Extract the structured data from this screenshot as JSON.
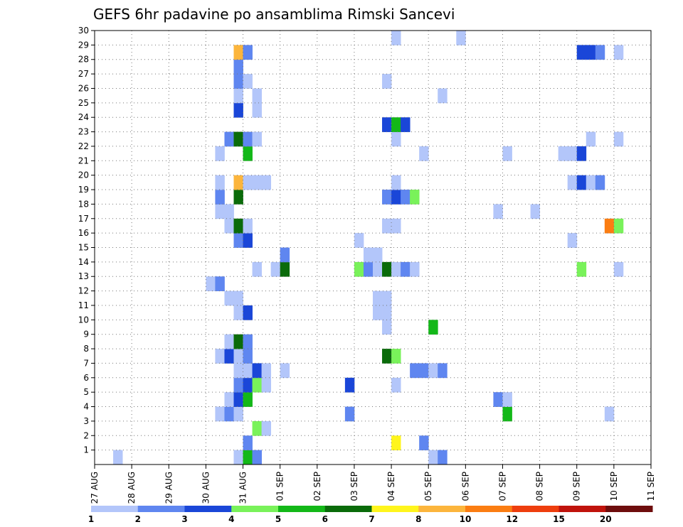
{
  "chart_data": {
    "type": "heatmap",
    "title": "GEFS 6hr padavine po ansamblima Rimski Sancevi",
    "xlabel": "",
    "ylabel": "",
    "x_ticks": [
      "27 AUG",
      "28 AUG",
      "29 AUG",
      "30 AUG",
      "31 AUG",
      "01 SEP",
      "02 SEP",
      "03 SEP",
      "04 SEP",
      "05 SEP",
      "06 SEP",
      "07 SEP",
      "08 SEP",
      "09 SEP",
      "10 SEP",
      "11 SEP"
    ],
    "xlim_days": [
      0,
      15
    ],
    "x_step_hours": 6,
    "y_ticks": [
      1,
      2,
      3,
      4,
      5,
      6,
      7,
      8,
      9,
      10,
      11,
      12,
      13,
      14,
      15,
      16,
      17,
      18,
      19,
      20,
      21,
      22,
      23,
      24,
      25,
      26,
      27,
      28,
      29,
      30
    ],
    "ylim": [
      0,
      30
    ],
    "grid": true,
    "colorbar": {
      "levels": [
        "1",
        "2",
        "3",
        "4",
        "5",
        "6",
        "7",
        "8",
        "10",
        "12",
        "15",
        "20"
      ],
      "colors": [
        "#b3c6fa",
        "#5f86f0",
        "#1a46d8",
        "#79f25a",
        "#13b818",
        "#0a6b0a",
        "#fff51c",
        "#fcb53c",
        "#fb7d12",
        "#ee3e0e",
        "#c0130c",
        "#6e0d0d"
      ]
    },
    "cells": [
      {
        "day": 0.5,
        "member": 0,
        "value": 1.5
      },
      {
        "day": 3.75,
        "member": 0,
        "value": 1.5
      },
      {
        "day": 4.0,
        "member": 0,
        "value": 5
      },
      {
        "day": 4.25,
        "member": 0,
        "value": 2.5
      },
      {
        "day": 9.0,
        "member": 0,
        "value": 1.5
      },
      {
        "day": 9.25,
        "member": 0,
        "value": 2.5
      },
      {
        "day": 4.0,
        "member": 1,
        "value": 2.5
      },
      {
        "day": 8.0,
        "member": 1,
        "value": 7.5
      },
      {
        "day": 8.75,
        "member": 1,
        "value": 2.5
      },
      {
        "day": 4.25,
        "member": 2,
        "value": 4.5
      },
      {
        "day": 4.5,
        "member": 2,
        "value": 1.5
      },
      {
        "day": 3.25,
        "member": 3,
        "value": 1.5
      },
      {
        "day": 3.5,
        "member": 3,
        "value": 2.5
      },
      {
        "day": 3.75,
        "member": 3,
        "value": 1.5
      },
      {
        "day": 6.75,
        "member": 3,
        "value": 2.5
      },
      {
        "day": 11.0,
        "member": 3,
        "value": 5.5
      },
      {
        "day": 13.75,
        "member": 3,
        "value": 1.5
      },
      {
        "day": 3.5,
        "member": 4,
        "value": 1.5
      },
      {
        "day": 3.75,
        "member": 4,
        "value": 3.5
      },
      {
        "day": 4.0,
        "member": 4,
        "value": 5.5
      },
      {
        "day": 10.75,
        "member": 4,
        "value": 2.5
      },
      {
        "day": 11.0,
        "member": 4,
        "value": 1.5
      },
      {
        "day": 3.75,
        "member": 5,
        "value": 2.5
      },
      {
        "day": 4.0,
        "member": 5,
        "value": 3.5
      },
      {
        "day": 4.25,
        "member": 5,
        "value": 4.5
      },
      {
        "day": 4.5,
        "member": 5,
        "value": 1.5
      },
      {
        "day": 6.75,
        "member": 5,
        "value": 3.5
      },
      {
        "day": 8.0,
        "member": 5,
        "value": 1.5
      },
      {
        "day": 3.75,
        "member": 6,
        "value": 1.5
      },
      {
        "day": 4.0,
        "member": 6,
        "value": 1.5
      },
      {
        "day": 4.25,
        "member": 6,
        "value": 3.5
      },
      {
        "day": 4.5,
        "member": 6,
        "value": 1.5
      },
      {
        "day": 5.0,
        "member": 6,
        "value": 1.5
      },
      {
        "day": 8.5,
        "member": 6,
        "value": 2.5
      },
      {
        "day": 8.75,
        "member": 6,
        "value": 2.5
      },
      {
        "day": 9.0,
        "member": 6,
        "value": 1.5
      },
      {
        "day": 9.25,
        "member": 6,
        "value": 2.5
      },
      {
        "day": 3.25,
        "member": 7,
        "value": 1.5
      },
      {
        "day": 3.5,
        "member": 7,
        "value": 3.5
      },
      {
        "day": 3.75,
        "member": 7,
        "value": 1.5
      },
      {
        "day": 4.0,
        "member": 7,
        "value": 2.5
      },
      {
        "day": 7.75,
        "member": 7,
        "value": 6.5
      },
      {
        "day": 8.0,
        "member": 7,
        "value": 4.5
      },
      {
        "day": 3.5,
        "member": 8,
        "value": 1.5
      },
      {
        "day": 3.75,
        "member": 8,
        "value": 6.5
      },
      {
        "day": 4.0,
        "member": 8,
        "value": 2.5
      },
      {
        "day": 7.75,
        "member": 9,
        "value": 1.5
      },
      {
        "day": 9.0,
        "member": 9,
        "value": 5.5
      },
      {
        "day": 3.75,
        "member": 10,
        "value": 1.5
      },
      {
        "day": 4.0,
        "member": 10,
        "value": 3.5
      },
      {
        "day": 7.5,
        "member": 10,
        "value": 1.5
      },
      {
        "day": 7.75,
        "member": 10,
        "value": 1.5
      },
      {
        "day": 3.5,
        "member": 11,
        "value": 1.5
      },
      {
        "day": 3.75,
        "member": 11,
        "value": 1.5
      },
      {
        "day": 7.5,
        "member": 11,
        "value": 1.5
      },
      {
        "day": 7.75,
        "member": 11,
        "value": 1.5
      },
      {
        "day": 3.0,
        "member": 12,
        "value": 1.5
      },
      {
        "day": 3.25,
        "member": 12,
        "value": 2.5
      },
      {
        "day": 4.25,
        "member": 13,
        "value": 1.5
      },
      {
        "day": 4.75,
        "member": 13,
        "value": 1.5
      },
      {
        "day": 5.0,
        "member": 13,
        "value": 6.5
      },
      {
        "day": 7.0,
        "member": 13,
        "value": 4.5
      },
      {
        "day": 7.25,
        "member": 13,
        "value": 2.5
      },
      {
        "day": 7.5,
        "member": 13,
        "value": 1.5
      },
      {
        "day": 7.75,
        "member": 13,
        "value": 6.5
      },
      {
        "day": 8.0,
        "member": 13,
        "value": 1.5
      },
      {
        "day": 8.25,
        "member": 13,
        "value": 2.5
      },
      {
        "day": 8.5,
        "member": 13,
        "value": 1.5
      },
      {
        "day": 13.0,
        "member": 13,
        "value": 4.5
      },
      {
        "day": 14.0,
        "member": 13,
        "value": 1.5
      },
      {
        "day": 5.0,
        "member": 14,
        "value": 2.5
      },
      {
        "day": 7.25,
        "member": 14,
        "value": 1.5
      },
      {
        "day": 7.5,
        "member": 14,
        "value": 1.5
      },
      {
        "day": 3.75,
        "member": 15,
        "value": 2.5
      },
      {
        "day": 4.0,
        "member": 15,
        "value": 3.5
      },
      {
        "day": 7.0,
        "member": 15,
        "value": 1.5
      },
      {
        "day": 12.75,
        "member": 15,
        "value": 1.5
      },
      {
        "day": 3.5,
        "member": 16,
        "value": 1.5
      },
      {
        "day": 3.75,
        "member": 16,
        "value": 6.5
      },
      {
        "day": 4.0,
        "member": 16,
        "value": 1.5
      },
      {
        "day": 7.75,
        "member": 16,
        "value": 1.5
      },
      {
        "day": 8.0,
        "member": 16,
        "value": 1.5
      },
      {
        "day": 13.75,
        "member": 16,
        "value": 11
      },
      {
        "day": 14.0,
        "member": 16,
        "value": 4.5
      },
      {
        "day": 3.25,
        "member": 17,
        "value": 1.5
      },
      {
        "day": 3.5,
        "member": 17,
        "value": 1.5
      },
      {
        "day": 10.75,
        "member": 17,
        "value": 1.5
      },
      {
        "day": 11.75,
        "member": 17,
        "value": 1.5
      },
      {
        "day": 3.25,
        "member": 18,
        "value": 2.5
      },
      {
        "day": 3.75,
        "member": 18,
        "value": 6.5
      },
      {
        "day": 7.75,
        "member": 18,
        "value": 2.5
      },
      {
        "day": 8.0,
        "member": 18,
        "value": 3.5
      },
      {
        "day": 8.25,
        "member": 18,
        "value": 2.5
      },
      {
        "day": 8.5,
        "member": 18,
        "value": 4.5
      },
      {
        "day": 3.25,
        "member": 19,
        "value": 1.5
      },
      {
        "day": 3.75,
        "member": 19,
        "value": 9
      },
      {
        "day": 4.0,
        "member": 19,
        "value": 1.5
      },
      {
        "day": 4.25,
        "member": 19,
        "value": 1.5
      },
      {
        "day": 4.5,
        "member": 19,
        "value": 1.5
      },
      {
        "day": 8.0,
        "member": 19,
        "value": 1.5
      },
      {
        "day": 12.75,
        "member": 19,
        "value": 1.5
      },
      {
        "day": 13.0,
        "member": 19,
        "value": 3.5
      },
      {
        "day": 13.25,
        "member": 19,
        "value": 1.5
      },
      {
        "day": 13.5,
        "member": 19,
        "value": 2.5
      },
      {
        "day": 3.25,
        "member": 21,
        "value": 1.5
      },
      {
        "day": 4.0,
        "member": 21,
        "value": 5.5
      },
      {
        "day": 8.75,
        "member": 21,
        "value": 1.5
      },
      {
        "day": 11.0,
        "member": 21,
        "value": 1.5
      },
      {
        "day": 12.5,
        "member": 21,
        "value": 1.5
      },
      {
        "day": 12.75,
        "member": 21,
        "value": 1.5
      },
      {
        "day": 13.0,
        "member": 21,
        "value": 3.5
      },
      {
        "day": 3.5,
        "member": 22,
        "value": 2.5
      },
      {
        "day": 3.75,
        "member": 22,
        "value": 6.5
      },
      {
        "day": 4.0,
        "member": 22,
        "value": 2.5
      },
      {
        "day": 4.25,
        "member": 22,
        "value": 1.5
      },
      {
        "day": 8.0,
        "member": 22,
        "value": 1.5
      },
      {
        "day": 13.25,
        "member": 22,
        "value": 1.5
      },
      {
        "day": 14.0,
        "member": 22,
        "value": 1.5
      },
      {
        "day": 7.75,
        "member": 23,
        "value": 3.5
      },
      {
        "day": 8.0,
        "member": 23,
        "value": 5.5
      },
      {
        "day": 8.25,
        "member": 23,
        "value": 3.5
      },
      {
        "day": 3.75,
        "member": 24,
        "value": 3.5
      },
      {
        "day": 4.25,
        "member": 24,
        "value": 1.5
      },
      {
        "day": 3.75,
        "member": 25,
        "value": 1.5
      },
      {
        "day": 4.25,
        "member": 25,
        "value": 1.5
      },
      {
        "day": 9.25,
        "member": 25,
        "value": 1.5
      },
      {
        "day": 3.75,
        "member": 26,
        "value": 2.5
      },
      {
        "day": 4.0,
        "member": 26,
        "value": 1.5
      },
      {
        "day": 7.75,
        "member": 26,
        "value": 1.5
      },
      {
        "day": 3.75,
        "member": 27,
        "value": 2.5
      },
      {
        "day": 3.75,
        "member": 28,
        "value": 9
      },
      {
        "day": 4.0,
        "member": 28,
        "value": 2.5
      },
      {
        "day": 13.0,
        "member": 28,
        "value": 3.5
      },
      {
        "day": 13.25,
        "member": 28,
        "value": 3.5
      },
      {
        "day": 13.5,
        "member": 28,
        "value": 2.5
      },
      {
        "day": 14.0,
        "member": 28,
        "value": 1.5
      },
      {
        "day": 8.0,
        "member": 29,
        "value": 1.5
      },
      {
        "day": 9.75,
        "member": 29,
        "value": 1.5
      }
    ]
  }
}
